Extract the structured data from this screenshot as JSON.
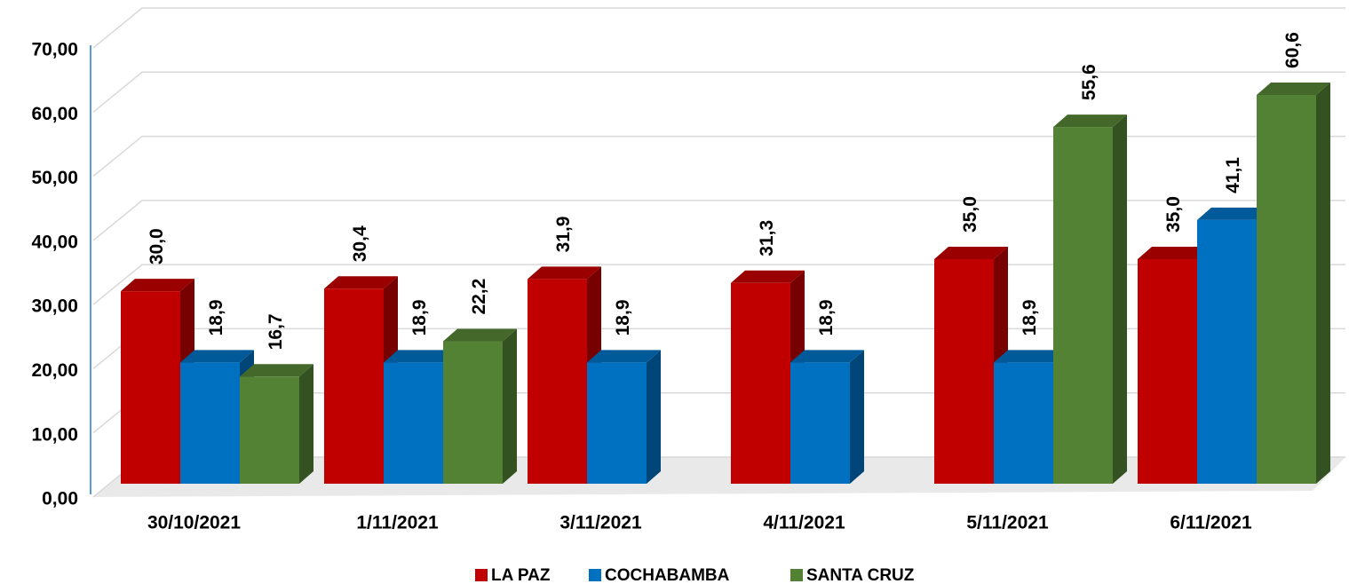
{
  "chart_data": {
    "type": "bar3d",
    "categories": [
      "30/10/2021",
      "1/11/2021",
      "3/11/2021",
      "4/11/2021",
      "5/11/2021",
      "6/11/2021"
    ],
    "series": [
      {
        "name": "LA PAZ",
        "color": "#c00000",
        "values": [
          30.0,
          30.4,
          31.9,
          31.3,
          35.0,
          35.0
        ],
        "value_labels": [
          "30,0",
          "30,4",
          "31,9",
          "31,3",
          "35,0",
          "35,0"
        ]
      },
      {
        "name": "COCHABAMBA",
        "color": "#0070c0",
        "values": [
          18.9,
          18.9,
          18.9,
          18.9,
          18.9,
          41.1
        ],
        "value_labels": [
          "18,9",
          "18,9",
          "18,9",
          "18,9",
          "18,9",
          "41,1"
        ]
      },
      {
        "name": "SANTA CRUZ",
        "color": "#548235",
        "values": [
          16.7,
          22.2,
          null,
          null,
          55.6,
          60.6
        ],
        "value_labels": [
          "16,7",
          "22,2",
          null,
          null,
          "55,6",
          "60,6"
        ]
      }
    ],
    "ylim": [
      0,
      70
    ],
    "yticks": [
      {
        "value": 0,
        "label": "0,00"
      },
      {
        "value": 10,
        "label": "10,00"
      },
      {
        "value": 20,
        "label": "20,00"
      },
      {
        "value": 30,
        "label": "30,00"
      },
      {
        "value": 40,
        "label": "40,00"
      },
      {
        "value": 50,
        "label": "50,00"
      },
      {
        "value": 60,
        "label": "60,00"
      },
      {
        "value": 70,
        "label": "70,00"
      }
    ],
    "grid": true,
    "legend": "bottom"
  }
}
